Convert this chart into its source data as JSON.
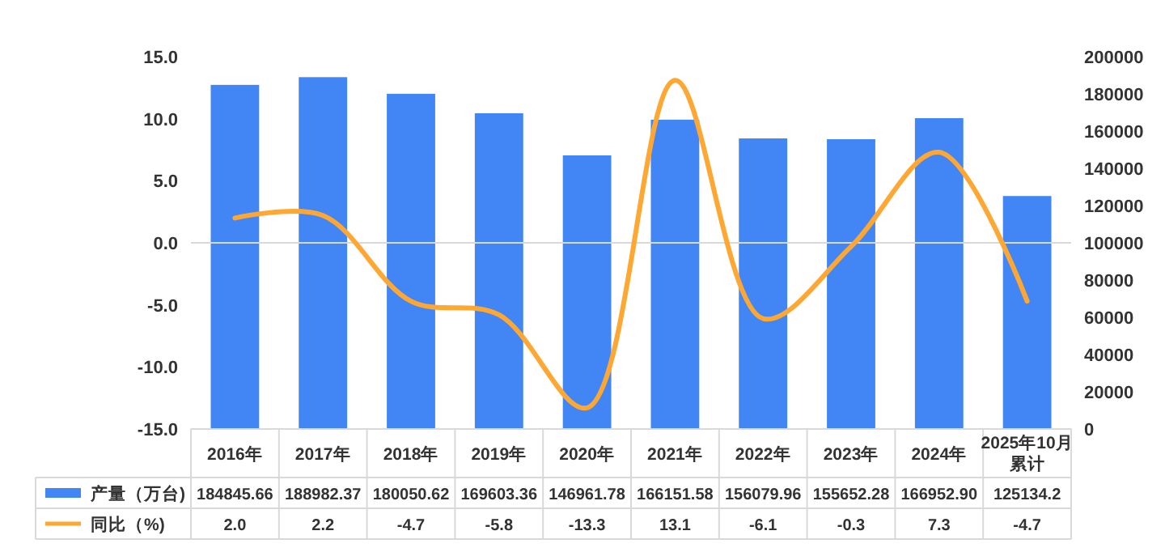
{
  "chart_data": {
    "type": "bar",
    "categories": [
      "2016年",
      "2017年",
      "2018年",
      "2019年",
      "2020年",
      "2021年",
      "2022年",
      "2023年",
      "2024年",
      "2025年10月累计"
    ],
    "series": [
      {
        "name": "产量（万台)",
        "axis": "y2",
        "color": "#4285f4",
        "values": [
          184845.66,
          188982.37,
          180050.62,
          169603.36,
          146961.78,
          166151.58,
          156079.96,
          155652.28,
          166952.9,
          125134.2
        ],
        "value_labels": [
          "184845.66",
          "188982.37",
          "180050.62",
          "169603.36",
          "146961.78",
          "166151.58",
          "156079.96",
          "155652.28",
          "166952.90",
          "125134.2"
        ]
      },
      {
        "name": "同比（%)",
        "type": "line",
        "color": "#ffa733",
        "values": [
          2.0,
          2.2,
          -4.7,
          -5.8,
          -13.3,
          13.1,
          -6.1,
          -0.3,
          7.3,
          -4.7
        ],
        "value_labels": [
          "2.0",
          "2.2",
          "-4.7",
          "-5.8",
          "-13.3",
          "13.1",
          "-6.1",
          "-0.3",
          "7.3",
          "-4.7"
        ]
      }
    ],
    "ylim": [
      -15,
      15
    ],
    "yticks": [
      {
        "value": -15,
        "label": "-15.0"
      },
      {
        "value": -10,
        "label": "-10.0"
      },
      {
        "value": -5,
        "label": "-5.0"
      },
      {
        "value": 0,
        "label": "0.0"
      },
      {
        "value": 5,
        "label": "5.0"
      },
      {
        "value": 10,
        "label": "10.0"
      },
      {
        "value": 15,
        "label": "15.0"
      }
    ],
    "y2lim": [
      0,
      200000
    ],
    "y2ticks": [
      0,
      20000,
      40000,
      60000,
      80000,
      100000,
      120000,
      140000,
      160000,
      180000,
      200000
    ],
    "data_labels": true,
    "legend": "bottom",
    "ref_lines": [
      {
        "axis": "y",
        "value": 0,
        "color": "#d9d9d9"
      }
    ]
  }
}
